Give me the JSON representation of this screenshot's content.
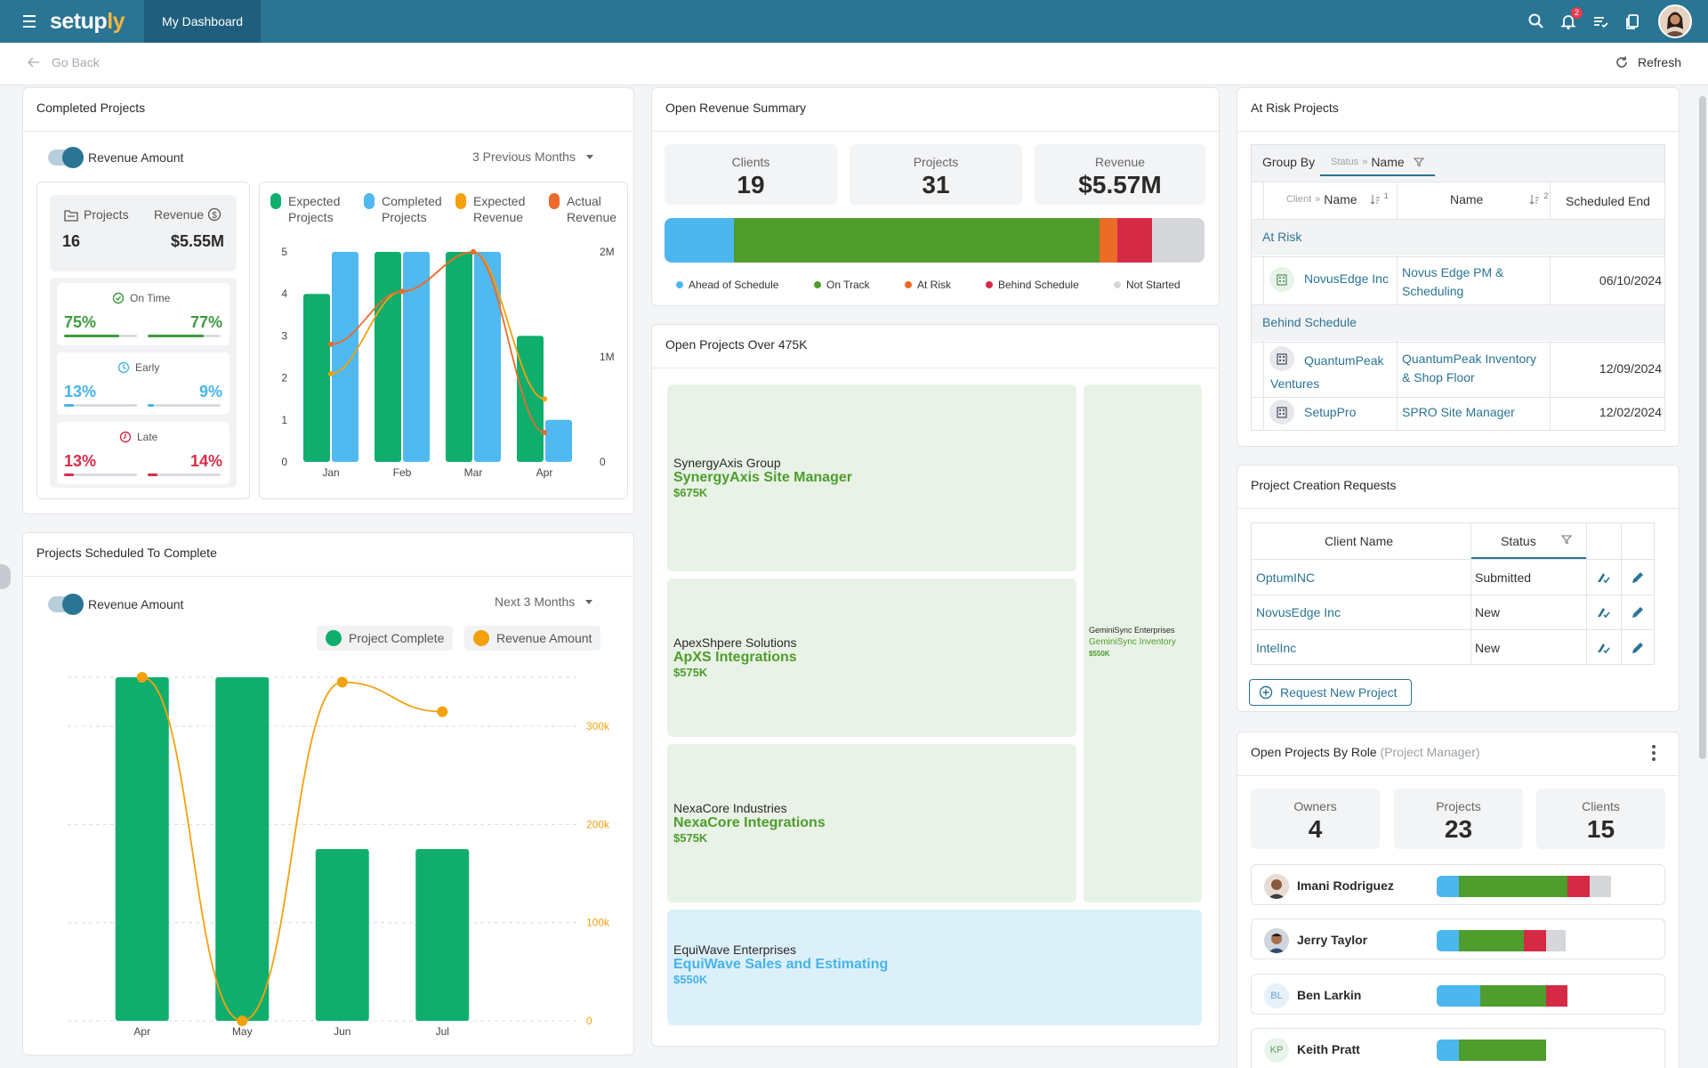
{
  "app": {
    "logo_a": "setup",
    "logo_b": "ly",
    "tab": "My Dashboard",
    "notifications": "2"
  },
  "subbar": {
    "go_back": "Go Back",
    "refresh": "Refresh"
  },
  "completed": {
    "title": "Completed Projects",
    "toggle_label": "Revenue Amount",
    "period": "3 Previous Months",
    "projects_label": "Projects",
    "projects_value": "16",
    "revenue_label": "Revenue",
    "revenue_value": "$5.55M",
    "rows": [
      {
        "label": "On Time",
        "left": "75%",
        "right": "77%",
        "left_fill": 0.75,
        "right_fill": 0.77,
        "color": "#3e9b3e"
      },
      {
        "label": "Early",
        "left": "13%",
        "right": "9%",
        "left_fill": 0.13,
        "right_fill": 0.09,
        "color": "#46b3ea"
      },
      {
        "label": "Late",
        "left": "13%",
        "right": "14%",
        "left_fill": 0.13,
        "right_fill": 0.14,
        "color": "#d62d48"
      }
    ],
    "legend": [
      "Expected Projects",
      "Completed Projects",
      "Expected Revenue",
      "Actual Revenue"
    ],
    "legend_colors": [
      "#0fae6d",
      "#4fb9f0",
      "#f3a10f",
      "#ec6a2c"
    ]
  },
  "scheduled": {
    "title": "Projects Scheduled To Complete",
    "toggle_label": "Revenue Amount",
    "period": "Next 3 Months",
    "legend": [
      "Project Complete",
      "Revenue Amount"
    ]
  },
  "chart_data": [
    {
      "type": "bar",
      "categories": [
        "Jan",
        "Feb",
        "Mar",
        "Apr"
      ],
      "ylim": [
        0,
        5
      ],
      "y_ticks": [
        "0",
        "1",
        "2",
        "3",
        "4",
        "5"
      ],
      "y2_ticks": [
        "0",
        "1M",
        "2M"
      ],
      "series": [
        {
          "name": "Expected Projects",
          "values": [
            4,
            5,
            5,
            3
          ]
        },
        {
          "name": "Completed Projects",
          "values": [
            5,
            5,
            5,
            1
          ]
        },
        {
          "name": "Expected Revenue",
          "type": "line",
          "values": [
            1.05,
            2.03,
            2.5,
            0.75
          ]
        },
        {
          "name": "Actual Revenue",
          "type": "line",
          "values": [
            1.4,
            2.03,
            2.5,
            0.35
          ]
        }
      ]
    },
    {
      "type": "bar",
      "categories": [
        "Apr",
        "May",
        "Jun",
        "Jul"
      ],
      "ylim": [
        0,
        350000
      ],
      "y2_ticks": [
        "0",
        "100k",
        "200k",
        "300k"
      ],
      "series": [
        {
          "name": "Project Complete",
          "values": [
            350000,
            350000,
            175000,
            175000
          ]
        },
        {
          "name": "Revenue Amount",
          "type": "line",
          "values": [
            350000,
            0,
            345000,
            315000
          ]
        }
      ]
    }
  ],
  "revenue": {
    "title": "Open Revenue Summary",
    "boxes": [
      {
        "label": "Clients",
        "value": "19"
      },
      {
        "label": "Projects",
        "value": "31"
      },
      {
        "label": "Revenue",
        "value": "$5.57M"
      }
    ],
    "segments": [
      {
        "name": "Ahead of Schedule",
        "share": 0.105,
        "color": "#4cb7ee"
      },
      {
        "name": "On Track",
        "share": 0.553,
        "color": "#4e9d2d"
      },
      {
        "name": "At Risk",
        "share": 0.026,
        "color": "#ea6c26"
      },
      {
        "name": "Behind Schedule",
        "share": 0.053,
        "color": "#d52a46"
      },
      {
        "name": "Not Started",
        "share": 0.079,
        "color": "#d5d7da"
      }
    ]
  },
  "over475": {
    "title": "Open Projects Over 475K",
    "tiles": [
      {
        "client": "SynergyAxis Group",
        "project": "SynergyAxis Site Manager",
        "amount": "$675K"
      },
      {
        "client": "ApexShpere Solutions",
        "project": "ApXS Integrations",
        "amount": "$575K"
      },
      {
        "client": "NexaCore Industries",
        "project": "NexaCore Integrations",
        "amount": "$575K"
      },
      {
        "client": "EquiWave Enterprises",
        "project": "EquiWave Sales and Estimating",
        "amount": "$550K"
      },
      {
        "client": "GeminiSync Enterprises",
        "project": "GeminiSync Inventory",
        "amount": "$550K"
      }
    ]
  },
  "atrisk": {
    "title": "At Risk Projects",
    "group_by": "Group By",
    "chip_status": "Status",
    "chip_sep": "»",
    "chip_name": "Name",
    "col_client_prefix": "Client",
    "col_client": "Name",
    "col_sort1": "1",
    "col_name": "Name",
    "col_sort2": "2",
    "col_end": "Scheduled End",
    "group1": "At Risk",
    "group2": "Behind Schedule",
    "rows": [
      {
        "client": "NovusEdge Inc",
        "project_a": "Novus Edge PM &",
        "project_b": "Scheduling",
        "date": "06/10/2024"
      },
      {
        "client_a": "QuantumPeak",
        "client_b": "Ventures",
        "project_a": "QuantumPeak Inventory",
        "project_b": "& Shop Floor",
        "date": "12/09/2024"
      },
      {
        "client": "SetupPro",
        "project_a": "SPRO Site Manager",
        "date": "12/02/2024"
      }
    ]
  },
  "requests": {
    "title": "Project Creation Requests",
    "col_client": "Client Name",
    "col_status": "Status",
    "rows": [
      {
        "client": "OptumINC",
        "status": "Submitted"
      },
      {
        "client": "NovusEdge Inc",
        "status": "New"
      },
      {
        "client": "IntelInc",
        "status": "New"
      }
    ],
    "button": "Request New Project"
  },
  "byrole": {
    "title": "Open Projects By Role",
    "role": "(Project Manager)",
    "boxes": [
      {
        "label": "Owners",
        "value": "4"
      },
      {
        "label": "Projects",
        "value": "23"
      },
      {
        "label": "Clients",
        "value": "15"
      }
    ],
    "people": [
      {
        "name": "Imani Rodriguez",
        "initials": "",
        "segments": [
          0.1,
          0.5,
          0.1,
          0.1
        ]
      },
      {
        "name": "Jerry Taylor",
        "initials": "",
        "segments": [
          0.1,
          0.3,
          0.1,
          0.09
        ]
      },
      {
        "name": "Ben Larkin",
        "initials": "BL",
        "segments": [
          0.2,
          0.3,
          0.1,
          0
        ]
      },
      {
        "name": "Keith Pratt",
        "initials": "KP",
        "segments": [
          0.1,
          0.4,
          0,
          0
        ]
      }
    ],
    "seg_colors": [
      "#4cb7ee",
      "#4e9d2d",
      "#d52a46",
      "#d5d7da"
    ]
  }
}
